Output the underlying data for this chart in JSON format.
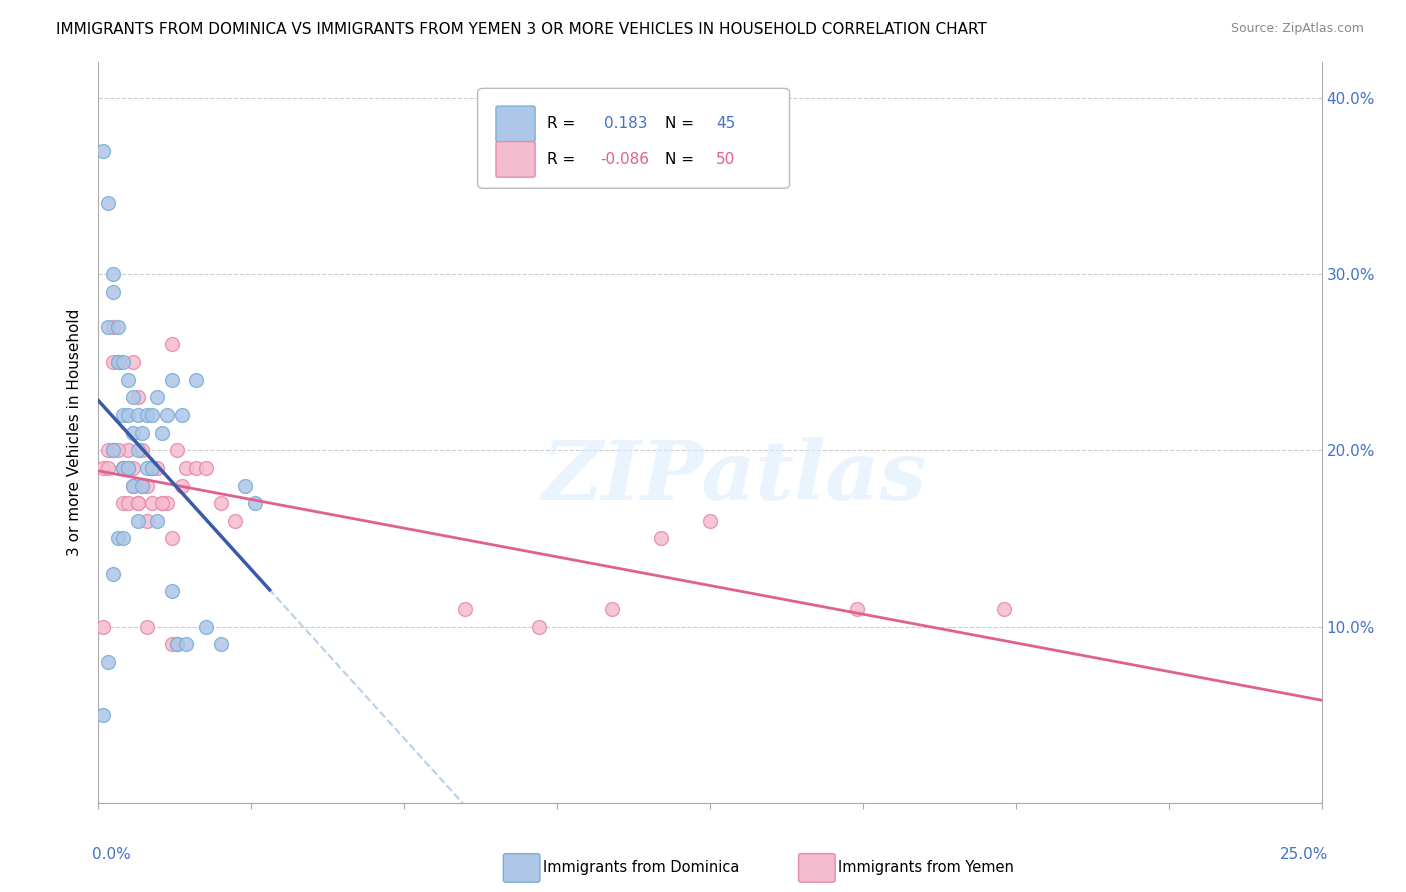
{
  "title": "IMMIGRANTS FROM DOMINICA VS IMMIGRANTS FROM YEMEN 3 OR MORE VEHICLES IN HOUSEHOLD CORRELATION CHART",
  "source": "Source: ZipAtlas.com",
  "ylabel": "3 or more Vehicles in Household",
  "xmin": 0.0,
  "xmax": 0.25,
  "ymin": 0.0,
  "ymax": 0.42,
  "yticks": [
    0.0,
    0.1,
    0.2,
    0.3,
    0.4
  ],
  "right_ytick_labels": [
    "",
    "10.0%",
    "20.0%",
    "30.0%",
    "40.0%"
  ],
  "dominica_color": "#aec6e8",
  "dominica_edge_color": "#7aafd4",
  "yemen_color": "#f5bcd0",
  "yemen_edge_color": "#e88aaa",
  "dominica_line_color": "#3a5ca8",
  "yemen_line_color": "#e06090",
  "dashed_line_color": "#b0cce8",
  "watermark_color": "#ddeeff",
  "dominica_x": [
    0.001,
    0.002,
    0.002,
    0.002,
    0.003,
    0.003,
    0.003,
    0.004,
    0.004,
    0.004,
    0.005,
    0.005,
    0.005,
    0.006,
    0.006,
    0.006,
    0.007,
    0.007,
    0.007,
    0.008,
    0.008,
    0.008,
    0.009,
    0.009,
    0.01,
    0.01,
    0.011,
    0.011,
    0.012,
    0.012,
    0.013,
    0.014,
    0.015,
    0.015,
    0.016,
    0.017,
    0.018,
    0.02,
    0.022,
    0.025,
    0.03,
    0.032,
    0.001,
    0.003,
    0.005
  ],
  "dominica_y": [
    0.37,
    0.34,
    0.27,
    0.08,
    0.3,
    0.29,
    0.2,
    0.27,
    0.25,
    0.15,
    0.25,
    0.22,
    0.19,
    0.24,
    0.22,
    0.19,
    0.23,
    0.21,
    0.18,
    0.22,
    0.2,
    0.16,
    0.21,
    0.18,
    0.22,
    0.19,
    0.22,
    0.19,
    0.23,
    0.16,
    0.21,
    0.22,
    0.24,
    0.12,
    0.09,
    0.22,
    0.09,
    0.24,
    0.1,
    0.09,
    0.18,
    0.17,
    0.05,
    0.13,
    0.15
  ],
  "yemen_x": [
    0.001,
    0.002,
    0.003,
    0.003,
    0.004,
    0.005,
    0.005,
    0.006,
    0.006,
    0.007,
    0.007,
    0.008,
    0.008,
    0.009,
    0.01,
    0.01,
    0.011,
    0.012,
    0.013,
    0.014,
    0.015,
    0.015,
    0.016,
    0.017,
    0.018,
    0.02,
    0.022,
    0.025,
    0.028,
    0.001,
    0.002,
    0.003,
    0.004,
    0.005,
    0.006,
    0.007,
    0.008,
    0.009,
    0.01,
    0.011,
    0.013,
    0.015,
    0.016,
    0.075,
    0.09,
    0.105,
    0.115,
    0.125,
    0.155,
    0.185
  ],
  "yemen_y": [
    0.19,
    0.2,
    0.27,
    0.25,
    0.25,
    0.19,
    0.17,
    0.2,
    0.17,
    0.25,
    0.19,
    0.17,
    0.23,
    0.2,
    0.18,
    0.16,
    0.19,
    0.19,
    0.17,
    0.17,
    0.26,
    0.09,
    0.09,
    0.18,
    0.19,
    0.19,
    0.19,
    0.17,
    0.16,
    0.1,
    0.19,
    0.2,
    0.2,
    0.19,
    0.19,
    0.18,
    0.17,
    0.18,
    0.1,
    0.17,
    0.17,
    0.15,
    0.2,
    0.11,
    0.1,
    0.11,
    0.15,
    0.16,
    0.11,
    0.11
  ],
  "marker_size": 100,
  "watermark": "ZIPatlas"
}
